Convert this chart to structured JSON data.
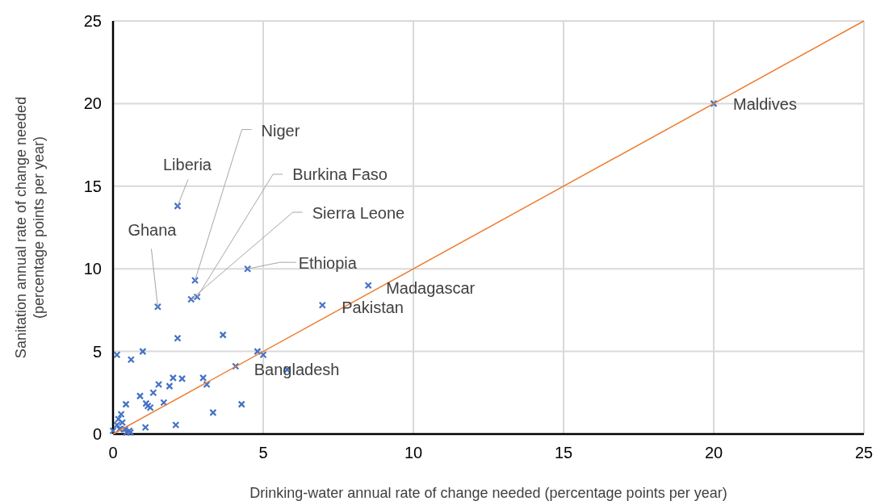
{
  "chart_data": {
    "type": "scatter",
    "xlabel": "Drinking-water annual rate of change needed (percentage points per year)",
    "ylabel": "Sanitation annual rate of change needed (percentage points per year)",
    "xlim": [
      0,
      25
    ],
    "ylim": [
      0,
      25
    ],
    "xticks": [
      0,
      5,
      10,
      15,
      20,
      25
    ],
    "yticks": [
      0,
      5,
      10,
      15,
      20,
      25
    ],
    "grid": true,
    "series": [
      {
        "marker": "cross",
        "color": "#4472c4",
        "x": [
          20.0,
          2.15,
          2.73,
          2.8,
          2.6,
          1.49,
          4.48,
          8.5,
          6.97,
          5.8,
          4.81,
          5.0,
          4.08,
          3.66,
          4.28,
          3.33,
          3.0,
          3.12,
          0.13,
          0.6,
          0.99,
          2.15,
          2.0,
          2.3,
          1.52,
          1.88,
          1.34,
          0.9,
          1.69,
          1.1,
          1.16,
          1.24,
          0.43,
          0.27,
          0.18,
          0.31,
          0.13,
          1.08,
          2.09,
          0.0,
          0.4,
          0.54,
          0.45,
          0.58,
          0.22
        ],
        "values": [
          20.0,
          13.8,
          9.3,
          8.3,
          8.15,
          7.7,
          10.0,
          9.0,
          7.8,
          3.9,
          5.0,
          4.8,
          4.1,
          6.0,
          1.8,
          1.3,
          3.4,
          3.0,
          4.8,
          4.5,
          5.0,
          5.8,
          3.4,
          3.35,
          3.0,
          2.9,
          2.5,
          2.3,
          1.9,
          1.85,
          1.7,
          1.6,
          1.8,
          1.2,
          0.9,
          0.7,
          0.55,
          0.4,
          0.55,
          0.2,
          0.3,
          0.2,
          0.1,
          0.1,
          0.3
        ]
      },
      {
        "type": "line",
        "marker": "none",
        "color": "#ed7d31",
        "x": [
          0,
          25
        ],
        "values": [
          0,
          25
        ]
      }
    ],
    "annotations": [
      {
        "text": "Maldives",
        "x": 20.0,
        "y": 20.0
      },
      {
        "text": "Liberia",
        "x": 2.15,
        "y": 13.8
      },
      {
        "text": "Niger",
        "x": 2.73,
        "y": 9.3
      },
      {
        "text": "Burkina Faso",
        "x": 2.8,
        "y": 8.3
      },
      {
        "text": "Sierra Leone",
        "x": 2.6,
        "y": 8.15
      },
      {
        "text": "Ghana",
        "x": 1.49,
        "y": 7.7
      },
      {
        "text": "Ethiopia",
        "x": 4.48,
        "y": 10.0
      },
      {
        "text": "Madagascar",
        "x": 8.5,
        "y": 9.0
      },
      {
        "text": "Pakistan",
        "x": 6.97,
        "y": 7.8
      },
      {
        "text": "Bangladesh",
        "x": 5.8,
        "y": 3.9
      }
    ]
  }
}
